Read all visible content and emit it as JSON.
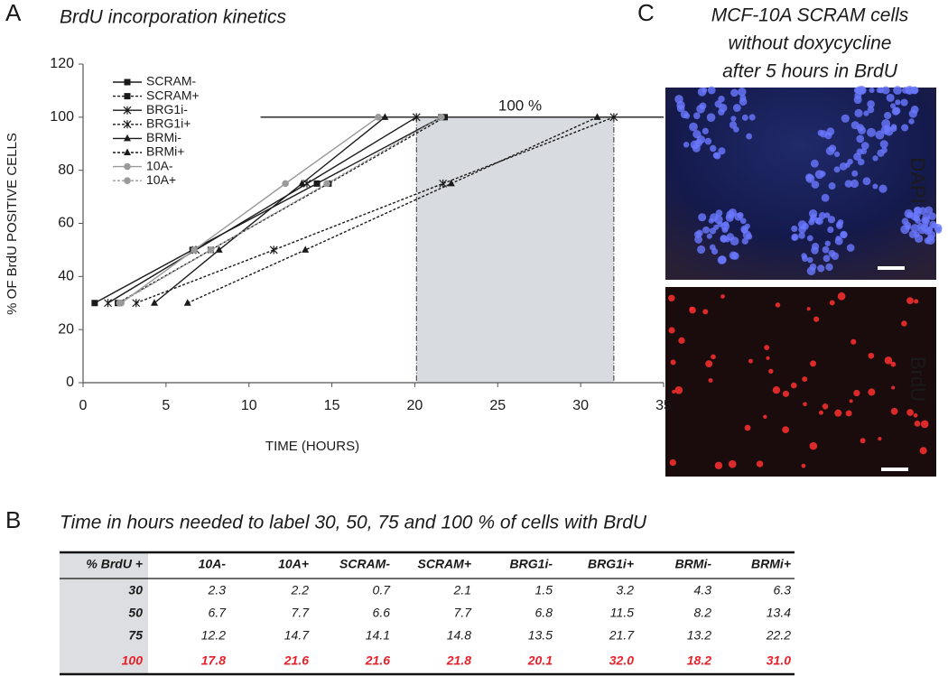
{
  "panel_labels": [
    "A",
    "B",
    "C"
  ],
  "chart_data": {
    "type": "line",
    "title": "BrdU incorporation kinetics",
    "x_label": "TIME (HOURS)",
    "y_label": "% OF BrdU POSITIVE CELLS",
    "xlim": [
      0,
      35
    ],
    "xticks": [
      0,
      5,
      10,
      15,
      20,
      25,
      30,
      35
    ],
    "ylim": [
      0,
      120
    ],
    "yticks": [
      0,
      20,
      40,
      60,
      80,
      100,
      120
    ],
    "grid": false,
    "legend": "upper left",
    "ref_line": {
      "value": 100,
      "x_start": 10.7,
      "label": "100 %"
    },
    "shade_x": [
      20.1,
      32.0
    ],
    "series": [
      {
        "name": "SCRAM-",
        "color": "#1a1a1a",
        "dash": false,
        "marker": "square",
        "x": [
          0.7,
          6.6,
          14.1,
          21.6
        ],
        "values": [
          30,
          50,
          75,
          100
        ]
      },
      {
        "name": "SCRAM+",
        "color": "#1a1a1a",
        "dash": true,
        "marker": "square",
        "x": [
          2.1,
          7.7,
          14.8,
          21.8
        ],
        "values": [
          30,
          50,
          75,
          100
        ]
      },
      {
        "name": "BRG1i-",
        "color": "#1a1a1a",
        "dash": false,
        "marker": "star",
        "x": [
          1.5,
          6.8,
          13.5,
          20.1
        ],
        "values": [
          30,
          50,
          75,
          100
        ]
      },
      {
        "name": "BRG1i+",
        "color": "#1a1a1a",
        "dash": true,
        "marker": "star",
        "x": [
          3.2,
          11.5,
          21.7,
          32.0
        ],
        "values": [
          30,
          50,
          75,
          100
        ]
      },
      {
        "name": "BRMi-",
        "color": "#1a1a1a",
        "dash": false,
        "marker": "triangle",
        "x": [
          4.3,
          8.2,
          13.2,
          18.2
        ],
        "values": [
          30,
          50,
          75,
          100
        ]
      },
      {
        "name": "BRMi+",
        "color": "#1a1a1a",
        "dash": true,
        "marker": "triangle",
        "x": [
          6.3,
          13.4,
          22.2,
          31.0
        ],
        "values": [
          30,
          50,
          75,
          100
        ]
      },
      {
        "name": "10A-",
        "color": "#9a9a9a",
        "dash": false,
        "marker": "circle",
        "x": [
          2.3,
          6.7,
          12.2,
          17.8
        ],
        "values": [
          30,
          50,
          75,
          100
        ]
      },
      {
        "name": "10A+",
        "color": "#9a9a9a",
        "dash": true,
        "marker": "circle",
        "x": [
          2.2,
          7.7,
          14.7,
          21.6
        ],
        "values": [
          30,
          50,
          75,
          100
        ]
      }
    ]
  },
  "table": {
    "title": "Time in hours needed to label 30, 50, 75 and 100 % of cells with BrdU",
    "header": [
      "% BrdU +",
      "10A-",
      "10A+",
      "SCRAM-",
      "SCRAM+",
      "BRG1i-",
      "BRG1i+",
      "BRMi-",
      "BRMi+"
    ],
    "rows": [
      [
        "30",
        "2.3",
        "2.2",
        "0.7",
        "2.1",
        "1.5",
        "3.2",
        "4.3",
        "6.3"
      ],
      [
        "50",
        "6.7",
        "7.7",
        "6.6",
        "7.7",
        "6.8",
        "11.5",
        "8.2",
        "13.4"
      ],
      [
        "75",
        "12.2",
        "14.7",
        "14.1",
        "14.8",
        "13.5",
        "21.7",
        "13.2",
        "22.2"
      ],
      [
        "100",
        "17.8",
        "21.6",
        "21.6",
        "21.8",
        "20.1",
        "32.0",
        "18.2",
        "31.0"
      ]
    ]
  },
  "micrograph": {
    "title_lines": [
      "MCF-10A SCRAM cells",
      "without doxycycline",
      "after 5 hours in BrdU"
    ],
    "labels": [
      "DAPI",
      "BrdU"
    ]
  }
}
